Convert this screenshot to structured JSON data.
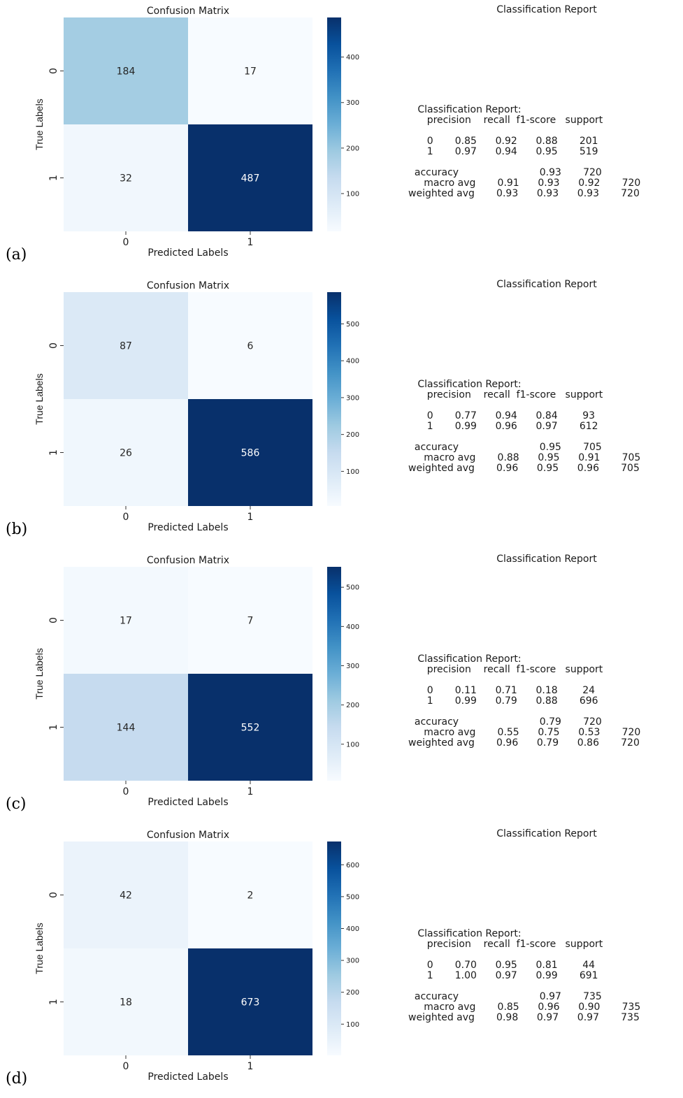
{
  "chart_data": [
    {
      "panel": "(a)",
      "type": "heatmap",
      "title": "Confusion Matrix",
      "xlabel": "Predicted Labels",
      "ylabel": "True Labels",
      "x_ticks": [
        "0",
        "1"
      ],
      "y_ticks": [
        "0",
        "1"
      ],
      "matrix": [
        [
          184,
          17
        ],
        [
          32,
          487
        ]
      ],
      "colorbar": {
        "min": 17,
        "max": 487,
        "ticks": [
          100,
          200,
          300,
          400
        ]
      },
      "colormap": "Blues",
      "report_title": "Classification Report",
      "report_lines": [
        "   Classification Report:",
        "      precision    recall  f1-score   support",
        "",
        "      0       0.85      0.92      0.88       201",
        "      1       0.97      0.94      0.95       519",
        "",
        "  accuracy                          0.93       720",
        "     macro avg       0.91      0.93      0.92       720",
        "weighted avg       0.93      0.93      0.93       720"
      ]
    },
    {
      "panel": "(b)",
      "type": "heatmap",
      "title": "Confusion Matrix",
      "xlabel": "Predicted Labels",
      "ylabel": "True Labels",
      "x_ticks": [
        "0",
        "1"
      ],
      "y_ticks": [
        "0",
        "1"
      ],
      "matrix": [
        [
          87,
          6
        ],
        [
          26,
          586
        ]
      ],
      "colorbar": {
        "min": 6,
        "max": 586,
        "ticks": [
          100,
          200,
          300,
          400,
          500
        ]
      },
      "colormap": "Blues",
      "report_title": "Classification Report",
      "report_lines": [
        "   Classification Report:",
        "      precision    recall  f1-score   support",
        "",
        "      0       0.77      0.94      0.84        93",
        "      1       0.99      0.96      0.97       612",
        "",
        "  accuracy                          0.95       705",
        "     macro avg       0.88      0.95      0.91       705",
        "weighted avg       0.96      0.95      0.96       705"
      ]
    },
    {
      "panel": "(c)",
      "type": "heatmap",
      "title": "Confusion Matrix",
      "xlabel": "Predicted Labels",
      "ylabel": "True Labels",
      "x_ticks": [
        "0",
        "1"
      ],
      "y_ticks": [
        "0",
        "1"
      ],
      "matrix": [
        [
          17,
          7
        ],
        [
          144,
          552
        ]
      ],
      "colorbar": {
        "min": 7,
        "max": 552,
        "ticks": [
          100,
          200,
          300,
          400,
          500
        ]
      },
      "colormap": "Blues",
      "report_title": "Classification Report",
      "report_lines": [
        "   Classification Report:",
        "      precision    recall  f1-score   support",
        "",
        "      0       0.11      0.71      0.18        24",
        "      1       0.99      0.79      0.88       696",
        "",
        "  accuracy                          0.79       720",
        "     macro avg       0.55      0.75      0.53       720",
        "weighted avg       0.96      0.79      0.86       720"
      ]
    },
    {
      "panel": "(d)",
      "type": "heatmap",
      "title": "Confusion Matrix",
      "xlabel": "Predicted Labels",
      "ylabel": "True Labels",
      "x_ticks": [
        "0",
        "1"
      ],
      "y_ticks": [
        "0",
        "1"
      ],
      "matrix": [
        [
          42,
          2
        ],
        [
          18,
          673
        ]
      ],
      "colorbar": {
        "min": 2,
        "max": 673,
        "ticks": [
          100,
          200,
          300,
          400,
          500,
          600
        ]
      },
      "colormap": "Blues",
      "report_title": "Classification Report",
      "report_lines": [
        "   Classification Report:",
        "      precision    recall  f1-score   support",
        "",
        "      0       0.70      0.95      0.81        44",
        "      1       1.00      0.97      0.99       691",
        "",
        "  accuracy                          0.97       735",
        "     macro avg       0.85      0.96      0.90       735",
        "weighted avg       0.98      0.97      0.97       735"
      ]
    }
  ]
}
